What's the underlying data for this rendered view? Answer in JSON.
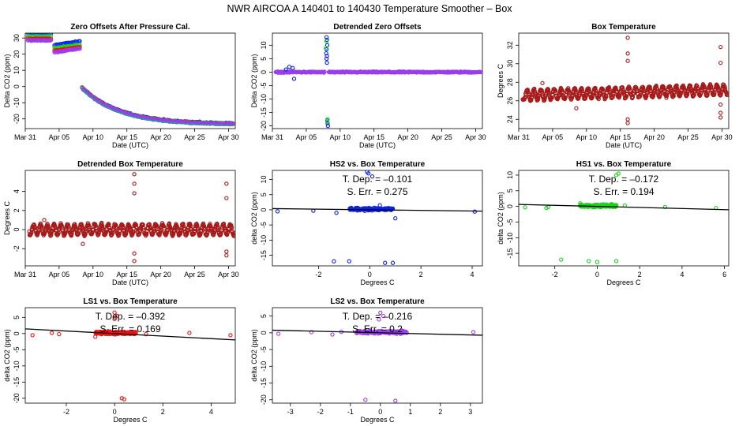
{
  "page_title": "NWR   AIRCOA A   140401 to 140430   Temperature Smoother – Box",
  "colors": {
    "blue": "#0a22ee",
    "green": "#1ad31a",
    "red": "#ee1111",
    "purple": "#9b3cf0",
    "darkred": "#a61a1a",
    "teal": "#17a0a0",
    "black": "#000000"
  },
  "date_ticks": [
    "Mar 31",
    "Apr 05",
    "Apr 10",
    "Apr 15",
    "Apr 20",
    "Apr 25",
    "Apr 30"
  ],
  "chart_data": [
    {
      "id": "p1",
      "type": "scatter",
      "xkind": "date",
      "title": "Zero Offsets After Pressure Cal.",
      "xlabel": "Date (UTC)",
      "ylabel": "Delta CO2 (ppm)",
      "xlim": [
        0.0,
        31.0
      ],
      "ylim": [
        -26.0,
        33.0
      ],
      "yticks": [
        -20,
        -10,
        0,
        10,
        20,
        30
      ],
      "yticklabels": [
        "-20",
        "-10",
        "0",
        "10",
        "20",
        "30"
      ],
      "series": [
        {
          "name": "HS2",
          "color": "blue",
          "gen": "offsets",
          "base": 3.5
        },
        {
          "name": "HS1",
          "color": "green",
          "gen": "offsets",
          "base": 1.5
        },
        {
          "name": "LS1",
          "color": "red",
          "gen": "offsets",
          "base": 0.0
        },
        {
          "name": "LS2",
          "color": "purple",
          "gen": "offsets",
          "base": -1.0
        },
        {
          "name": "fit",
          "color": "teal",
          "gen": "offsetline"
        }
      ]
    },
    {
      "id": "p2",
      "type": "scatter",
      "xkind": "date",
      "title": "Detrended Zero Offsets",
      "xlabel": "Date (UTC)",
      "ylabel": "Delta CO2 (ppm)",
      "xlim": [
        0.0,
        31.0
      ],
      "ylim": [
        -21.0,
        14.5
      ],
      "yticks": [
        -20,
        -15,
        -10,
        -5,
        0,
        5,
        10
      ],
      "yticklabels": [
        "-20",
        "-15",
        "-10",
        "-5",
        "0",
        "5",
        "10"
      ],
      "series": [
        {
          "name": "LS2",
          "color": "purple",
          "gen": "detrend"
        },
        {
          "name": "spikes",
          "color": "blue",
          "gen": "spikes",
          "points": [
            [
              8.0,
              13.0
            ],
            [
              8.05,
              12.0
            ],
            [
              8.1,
              10.0
            ],
            [
              8.0,
              8.5
            ],
            [
              7.95,
              7.0
            ],
            [
              8.05,
              6.0
            ],
            [
              8.0,
              5.0
            ],
            [
              8.05,
              3.5
            ],
            [
              8.1,
              -18.0
            ],
            [
              8.15,
              -19.0
            ],
            [
              8.2,
              -20.0
            ],
            [
              3.2,
              -2.5
            ],
            [
              2.5,
              2.0
            ],
            [
              3.0,
              1.5
            ],
            [
              2.0,
              1.0
            ]
          ]
        },
        {
          "name": "spikes-g",
          "color": "green",
          "gen": "spikes",
          "points": [
            [
              8.0,
              11.5
            ],
            [
              7.9,
              9.0
            ],
            [
              8.1,
              -18.5
            ],
            [
              8.15,
              -17.5
            ]
          ]
        }
      ]
    },
    {
      "id": "p3",
      "type": "scatter",
      "xkind": "date",
      "title": "Box Temperature",
      "xlabel": "Date (UTC)",
      "ylabel": "Degrees C",
      "xlim": [
        0.0,
        31.0
      ],
      "ylim": [
        23.0,
        33.3
      ],
      "yticks": [
        24,
        26,
        28,
        30,
        32
      ],
      "yticklabels": [
        "24",
        "26",
        "28",
        "30",
        "32"
      ],
      "series": [
        {
          "name": "Box",
          "color": "darkred",
          "gen": "boxtemp",
          "points": [
            [
              16.1,
              32.8
            ],
            [
              16.1,
              31.1
            ],
            [
              16.1,
              30.3
            ],
            [
              16.1,
              24.0
            ],
            [
              16.1,
              23.6
            ],
            [
              29.8,
              31.8
            ],
            [
              29.8,
              30.1
            ],
            [
              29.8,
              25.6
            ],
            [
              29.8,
              24.7
            ],
            [
              29.8,
              24.2
            ],
            [
              3.5,
              27.9
            ],
            [
              8.5,
              25.2
            ]
          ]
        }
      ]
    },
    {
      "id": "p4",
      "type": "scatter",
      "xkind": "date",
      "title": "Detrended Box Temperature",
      "xlabel": "Date (UTC)",
      "ylabel": "Degrees C",
      "xlim": [
        0.0,
        31.0
      ],
      "ylim": [
        -3.8,
        6.2
      ],
      "yticks": [
        -2,
        0,
        2,
        4
      ],
      "yticklabels": [
        "-2",
        "0",
        "2",
        "4"
      ],
      "series": [
        {
          "name": "Box",
          "color": "darkred",
          "gen": "boxdetrend",
          "points": [
            [
              16.1,
              5.8
            ],
            [
              16.1,
              4.8
            ],
            [
              16.1,
              3.8
            ],
            [
              16.1,
              -2.5
            ],
            [
              16.1,
              -3.3
            ],
            [
              29.7,
              4.8
            ],
            [
              29.7,
              3.3
            ],
            [
              29.7,
              -2.3
            ],
            [
              29.7,
              -2.7
            ],
            [
              2.8,
              1.0
            ],
            [
              8.5,
              -1.5
            ]
          ]
        }
      ]
    },
    {
      "id": "p5",
      "type": "scatter",
      "xkind": "num",
      "title": "HS2 vs. Box Temperature",
      "xlabel": "Degrees C",
      "ylabel": "delta CO2 (ppm)",
      "xlim": [
        -3.8,
        4.4
      ],
      "ylim": [
        -18.5,
        13.0
      ],
      "xticks": [
        -2,
        0,
        2,
        4
      ],
      "xticklabels": [
        "-2",
        "0",
        "2",
        "4"
      ],
      "yticks": [
        -15,
        -10,
        -5,
        0,
        5,
        10
      ],
      "yticklabels": [
        "-15",
        "-10",
        "-5",
        "0",
        "5",
        "10"
      ],
      "tdep": "T. Dep. =  –0.101",
      "serr": "S. Err. =  0.275",
      "slope": -0.101,
      "series": [
        {
          "name": "HS2",
          "color": "blue",
          "gen": "cluster",
          "points": [
            [
              -3.6,
              -0.5
            ],
            [
              -2.2,
              -0.3
            ],
            [
              -1.3,
              -1.0
            ],
            [
              0.3,
              0.5
            ],
            [
              0.4,
              1.5
            ],
            [
              1.0,
              -2.8
            ],
            [
              4.1,
              -0.6
            ],
            [
              -1.4,
              -17.0
            ],
            [
              -0.8,
              -17.0
            ],
            [
              0.6,
              -17.5
            ],
            [
              0.9,
              -17.5
            ],
            [
              -0.05,
              12.0
            ],
            [
              0.1,
              11.0
            ],
            [
              -0.1,
              12.5
            ]
          ]
        }
      ]
    },
    {
      "id": "p6",
      "type": "scatter",
      "xkind": "num",
      "title": "HS1 vs. Box Temperature",
      "xlabel": "Degrees C",
      "ylabel": "delta CO2 (ppm)",
      "xlim": [
        -3.7,
        6.2
      ],
      "ylim": [
        -19.0,
        11.5
      ],
      "xticks": [
        -2,
        0,
        2,
        4,
        6
      ],
      "xticklabels": [
        "-2",
        "0",
        "2",
        "4",
        "6"
      ],
      "yticks": [
        -15,
        -10,
        -5,
        0,
        5,
        10
      ],
      "yticklabels": [
        "-15",
        "-10",
        "-5",
        "0",
        "5",
        "10"
      ],
      "tdep": "T. Dep. =  –0.172",
      "serr": "S. Err. =  0.194",
      "slope": -0.172,
      "series": [
        {
          "name": "HS1",
          "color": "green",
          "gen": "cluster",
          "points": [
            [
              -3.4,
              -0.3
            ],
            [
              -2.4,
              -0.5
            ],
            [
              -2.3,
              -0.2
            ],
            [
              -0.8,
              1.0
            ],
            [
              0.9,
              10.0
            ],
            [
              1.0,
              10.5
            ],
            [
              1.3,
              0.3
            ],
            [
              3.2,
              -0.2
            ],
            [
              5.6,
              -0.5
            ],
            [
              -1.7,
              -17.0
            ],
            [
              -0.4,
              -17.5
            ],
            [
              0.9,
              -17.5
            ],
            [
              0.0,
              -17.8
            ]
          ]
        }
      ]
    },
    {
      "id": "p7",
      "type": "scatter",
      "xkind": "num",
      "title": "LS1 vs. Box Temperature",
      "xlabel": "Degrees C",
      "ylabel": "delta CO2 (ppm)",
      "xlim": [
        -3.7,
        5.0
      ],
      "ylim": [
        -21.5,
        8.0
      ],
      "xticks": [
        -2,
        0,
        2,
        4
      ],
      "xticklabels": [
        "-2",
        "0",
        "2",
        "4"
      ],
      "yticks": [
        -20,
        -15,
        -10,
        -5,
        0,
        5
      ],
      "yticklabels": [
        "-20",
        "-15",
        "-10",
        "-5",
        "0",
        "5"
      ],
      "tdep": "T. Dep. =  –0.392",
      "serr": "S. Err. =  0.169",
      "slope": -0.392,
      "series": [
        {
          "name": "LS1",
          "color": "red",
          "gen": "cluster",
          "points": [
            [
              -3.4,
              -0.5
            ],
            [
              -2.6,
              0.2
            ],
            [
              -2.3,
              -0.2
            ],
            [
              -0.8,
              -1.0
            ],
            [
              0.0,
              6.5
            ],
            [
              0.1,
              5.5
            ],
            [
              0.0,
              4.5
            ],
            [
              1.3,
              -0.2
            ],
            [
              3.1,
              0.2
            ],
            [
              4.8,
              -0.5
            ],
            [
              0.3,
              -20.0
            ],
            [
              0.4,
              -20.3
            ]
          ]
        }
      ]
    },
    {
      "id": "p8",
      "type": "scatter",
      "xkind": "num",
      "title": "LS2 vs. Box Temperature",
      "xlabel": "Degrees C",
      "ylabel": "delta CO2 (ppm)",
      "xlim": [
        -3.6,
        3.4
      ],
      "ylim": [
        -21.0,
        7.5
      ],
      "xticks": [
        -3,
        -2,
        -1,
        0,
        1,
        2,
        3
      ],
      "xticklabels": [
        "-3",
        "-2",
        "-1",
        "0",
        "1",
        "2",
        "3"
      ],
      "yticks": [
        -20,
        -15,
        -10,
        -5,
        0,
        5
      ],
      "yticklabels": [
        "-20",
        "-15",
        "-10",
        "-5",
        "0",
        "5"
      ],
      "tdep": "T. Dep. =  –0.216",
      "serr": "S. Err. =  0.2",
      "slope": -0.216,
      "series": [
        {
          "name": "LS2",
          "color": "purple",
          "gen": "cluster",
          "points": [
            [
              -3.4,
              -0.3
            ],
            [
              -2.3,
              0.2
            ],
            [
              -1.6,
              -0.5
            ],
            [
              -1.3,
              0.3
            ],
            [
              0.0,
              6.0
            ],
            [
              0.1,
              5.0
            ],
            [
              -0.05,
              4.0
            ],
            [
              3.1,
              0.2
            ],
            [
              -0.5,
              -20.0
            ],
            [
              0.5,
              -20.3
            ]
          ]
        }
      ]
    }
  ]
}
